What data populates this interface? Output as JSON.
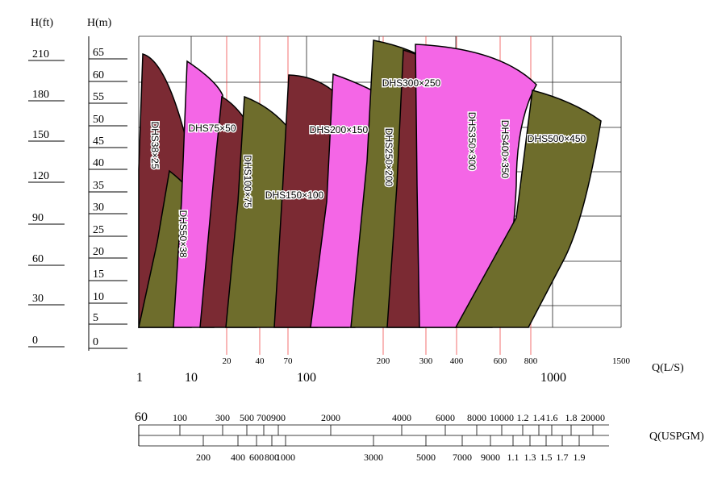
{
  "axes": {
    "h_ft_title": "H(ft)",
    "h_m_title": "H(m)",
    "h_ft_ticks": [
      "210",
      "180",
      "150",
      "120",
      "90",
      "60",
      "30",
      "0"
    ],
    "h_m_ticks": [
      "65",
      "60",
      "55",
      "50",
      "45",
      "40",
      "35",
      "30",
      "25",
      "20",
      "15",
      "10",
      "5",
      "0"
    ],
    "q_ls_title": "Q(L/S)",
    "q_ls_minor_ticks": [
      "20",
      "40",
      "70",
      "200",
      "300",
      "400",
      "600",
      "800",
      "1500"
    ],
    "q_ls_major_ticks": [
      "1",
      "10",
      "100",
      "1000"
    ],
    "q_usgpm_title": "Q(USPGM)",
    "q_usgpm_top_ticks": [
      "60",
      "100",
      "300",
      "500",
      "700",
      "900",
      "2000",
      "4000",
      "6000",
      "8000",
      "10000",
      "1.2",
      "1.4",
      "1.6",
      "1.8",
      "20000"
    ],
    "q_usgpm_bottom_ticks": [
      "200",
      "400",
      "600",
      "800",
      "1000",
      "3000",
      "5000",
      "7000",
      "9000",
      "1.1",
      "1.3",
      "1.5",
      "1.7",
      "1.9"
    ]
  },
  "pumps": [
    {
      "label": "DHS38×25"
    },
    {
      "label": "DHS50×38"
    },
    {
      "label": "DHS75×50"
    },
    {
      "label": "DHS100×75"
    },
    {
      "label": "DHS150×100"
    },
    {
      "label": "DHS200×150"
    },
    {
      "label": "DHS250×200"
    },
    {
      "label": "DHS300×250"
    },
    {
      "label": "DHS350×300"
    },
    {
      "label": "DHS400×350"
    },
    {
      "label": "DHS500×450"
    }
  ]
}
